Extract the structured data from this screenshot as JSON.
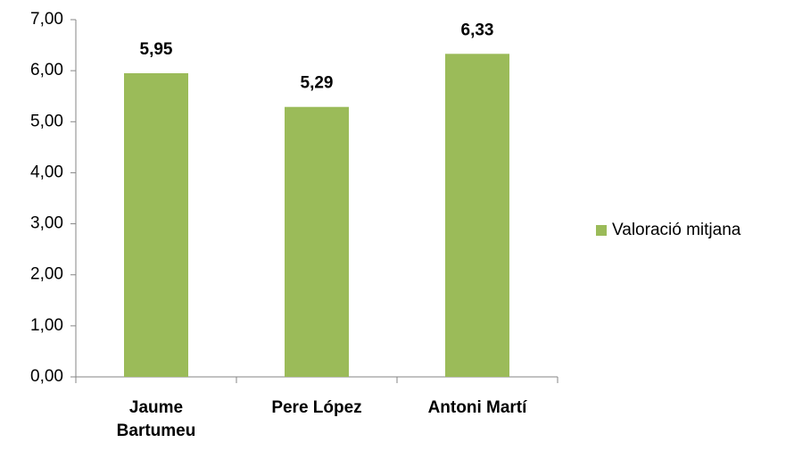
{
  "chart_data": {
    "type": "bar",
    "categories": [
      "Jaume Bartumeu",
      "Pere López",
      "Antoni Martí"
    ],
    "series": [
      {
        "name": "Valoració mitjana",
        "color": "#9bbb59",
        "values": [
          5.95,
          5.29,
          6.33
        ],
        "value_labels": [
          "5,95",
          "5,29",
          "6,33"
        ]
      }
    ],
    "ylim": [
      0,
      7
    ],
    "yticks": [
      {
        "value": 0,
        "label": "0,00"
      },
      {
        "value": 1,
        "label": "1,00"
      },
      {
        "value": 2,
        "label": "2,00"
      },
      {
        "value": 3,
        "label": "3,00"
      },
      {
        "value": 4,
        "label": "4,00"
      },
      {
        "value": 5,
        "label": "5,00"
      },
      {
        "value": 6,
        "label": "6,00"
      },
      {
        "value": 7,
        "label": "7,00"
      }
    ],
    "grid": false,
    "legend": "right"
  }
}
